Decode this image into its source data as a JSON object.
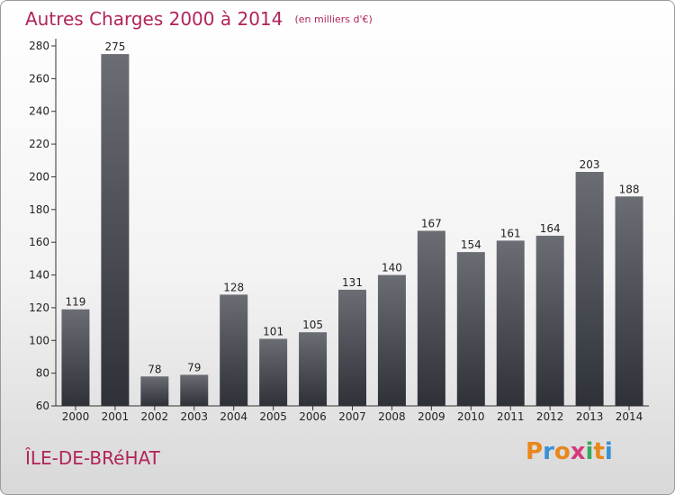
{
  "header": {
    "title": "Autres Charges 2000 à 2014",
    "subtitle": "(en milliers d'€)"
  },
  "footer": {
    "city": "ÎLE-DE-BRéHAT",
    "logo": [
      "P",
      "r",
      "o",
      "x",
      "i",
      "t",
      "i"
    ]
  },
  "colors": {
    "title": "#b0245c",
    "bar_top": "#6a6e74",
    "bar_bottom": "#2e3238",
    "logo": [
      "#e8871c",
      "#3a8fd6",
      "#e8871c",
      "#d63a7a",
      "#3aa85a",
      "#e8871c",
      "#3a8fd6"
    ]
  },
  "chart_data": {
    "type": "bar",
    "categories": [
      "2000",
      "2001",
      "2002",
      "2003",
      "2004",
      "2005",
      "2006",
      "2007",
      "2008",
      "2009",
      "2010",
      "2011",
      "2012",
      "2013",
      "2014"
    ],
    "values": [
      119,
      275,
      78,
      79,
      128,
      101,
      105,
      131,
      140,
      167,
      154,
      161,
      164,
      203,
      188
    ],
    "ylim": [
      60,
      280
    ],
    "yticks": [
      60,
      80,
      100,
      120,
      140,
      160,
      180,
      200,
      220,
      240,
      260,
      280
    ],
    "grid": false,
    "legend": "none"
  }
}
